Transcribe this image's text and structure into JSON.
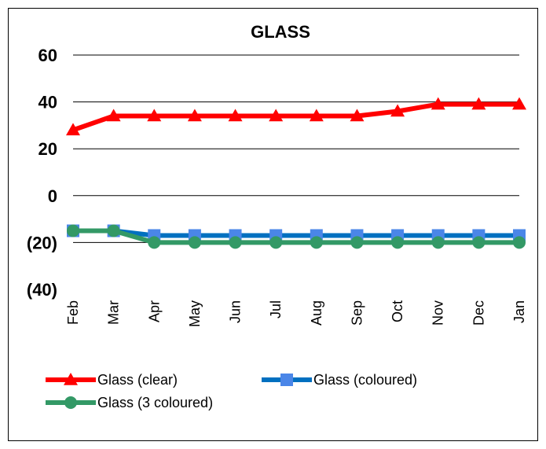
{
  "chart_data": {
    "type": "line",
    "title": "GLASS",
    "xlabel": "",
    "ylabel": "",
    "categories": [
      "Feb",
      "Mar",
      "Apr",
      "May",
      "Jun",
      "Jul",
      "Aug",
      "Sep",
      "Oct",
      "Nov",
      "Dec",
      "Jan"
    ],
    "ylim": [
      -40,
      60
    ],
    "yticks": [
      60,
      40,
      20,
      0,
      -20,
      -40
    ],
    "ytick_labels": [
      "60",
      "40",
      "20",
      "0",
      "(20)",
      "(40)"
    ],
    "grid": true,
    "legend_position": "bottom",
    "series": [
      {
        "name": "Glass (clear)",
        "color": "#ff0000",
        "marker": "triangle",
        "values": [
          28,
          34,
          34,
          34,
          34,
          34,
          34,
          34,
          36,
          39,
          39,
          39
        ]
      },
      {
        "name": "Glass (coloured)",
        "color": "#0070c0",
        "marker_color": "#4a86e8",
        "marker": "square",
        "values": [
          -15,
          -15,
          -17,
          -17,
          -17,
          -17,
          -17,
          -17,
          -17,
          -17,
          -17,
          -17
        ]
      },
      {
        "name": "Glass (3 coloured)",
        "color": "#339966",
        "marker": "circle",
        "values": [
          -15,
          -15,
          -20,
          -20,
          -20,
          -20,
          -20,
          -20,
          -20,
          -20,
          -20,
          -20
        ]
      }
    ]
  }
}
